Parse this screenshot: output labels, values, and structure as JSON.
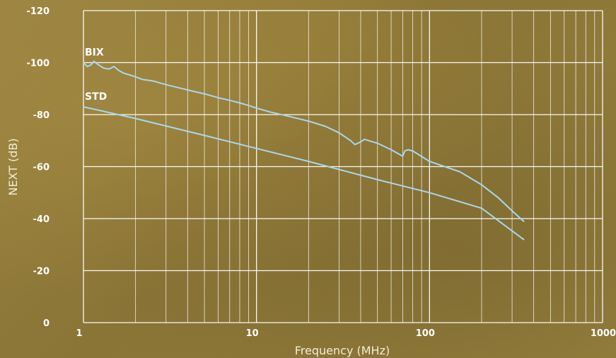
{
  "chart_data": {
    "type": "line",
    "xlabel": "Frequency (MHz)",
    "ylabel": "NEXT (dB)",
    "x_scale": "log",
    "xlim": [
      1,
      1000
    ],
    "ylim": [
      0,
      -120
    ],
    "x_ticks": [
      "1",
      "10",
      "100",
      "1000"
    ],
    "y_ticks": [
      "0",
      "-20",
      "-40",
      "-60",
      "-80",
      "-100",
      "-120"
    ],
    "grid": true,
    "colors": {
      "lines": "#a9d8ec",
      "grid": "#ffffff"
    },
    "series": [
      {
        "name": "BIX",
        "points": [
          [
            1,
            -100
          ],
          [
            1.05,
            -98.5
          ],
          [
            1.1,
            -99
          ],
          [
            1.15,
            -100.5
          ],
          [
            1.2,
            -99.5
          ],
          [
            1.3,
            -98
          ],
          [
            1.4,
            -97.5
          ],
          [
            1.5,
            -98.5
          ],
          [
            1.6,
            -97
          ],
          [
            1.7,
            -96
          ],
          [
            1.8,
            -95.5
          ],
          [
            2,
            -94.5
          ],
          [
            2.2,
            -93.5
          ],
          [
            2.5,
            -93
          ],
          [
            3,
            -91.5
          ],
          [
            4,
            -89.5
          ],
          [
            5,
            -88
          ],
          [
            6,
            -86.5
          ],
          [
            7,
            -85.5
          ],
          [
            8,
            -84.5
          ],
          [
            9,
            -83.5
          ],
          [
            10,
            -82.5
          ],
          [
            12,
            -81
          ],
          [
            15,
            -79.5
          ],
          [
            20,
            -77.5
          ],
          [
            25,
            -75.5
          ],
          [
            30,
            -73
          ],
          [
            35,
            -70
          ],
          [
            37,
            -68.5
          ],
          [
            40,
            -69.5
          ],
          [
            42,
            -70.5
          ],
          [
            50,
            -69
          ],
          [
            60,
            -66.5
          ],
          [
            70,
            -64
          ],
          [
            72,
            -66
          ],
          [
            75,
            -66.5
          ],
          [
            80,
            -66
          ],
          [
            100,
            -62
          ],
          [
            150,
            -58
          ],
          [
            200,
            -53
          ],
          [
            250,
            -48
          ],
          [
            300,
            -43
          ],
          [
            350,
            -39
          ]
        ]
      },
      {
        "name": "STD",
        "points": [
          [
            1,
            -83
          ],
          [
            2,
            -78.5
          ],
          [
            5,
            -72
          ],
          [
            10,
            -67
          ],
          [
            20,
            -62
          ],
          [
            50,
            -55
          ],
          [
            100,
            -50
          ],
          [
            200,
            -44
          ],
          [
            350,
            -32
          ]
        ]
      }
    ]
  }
}
